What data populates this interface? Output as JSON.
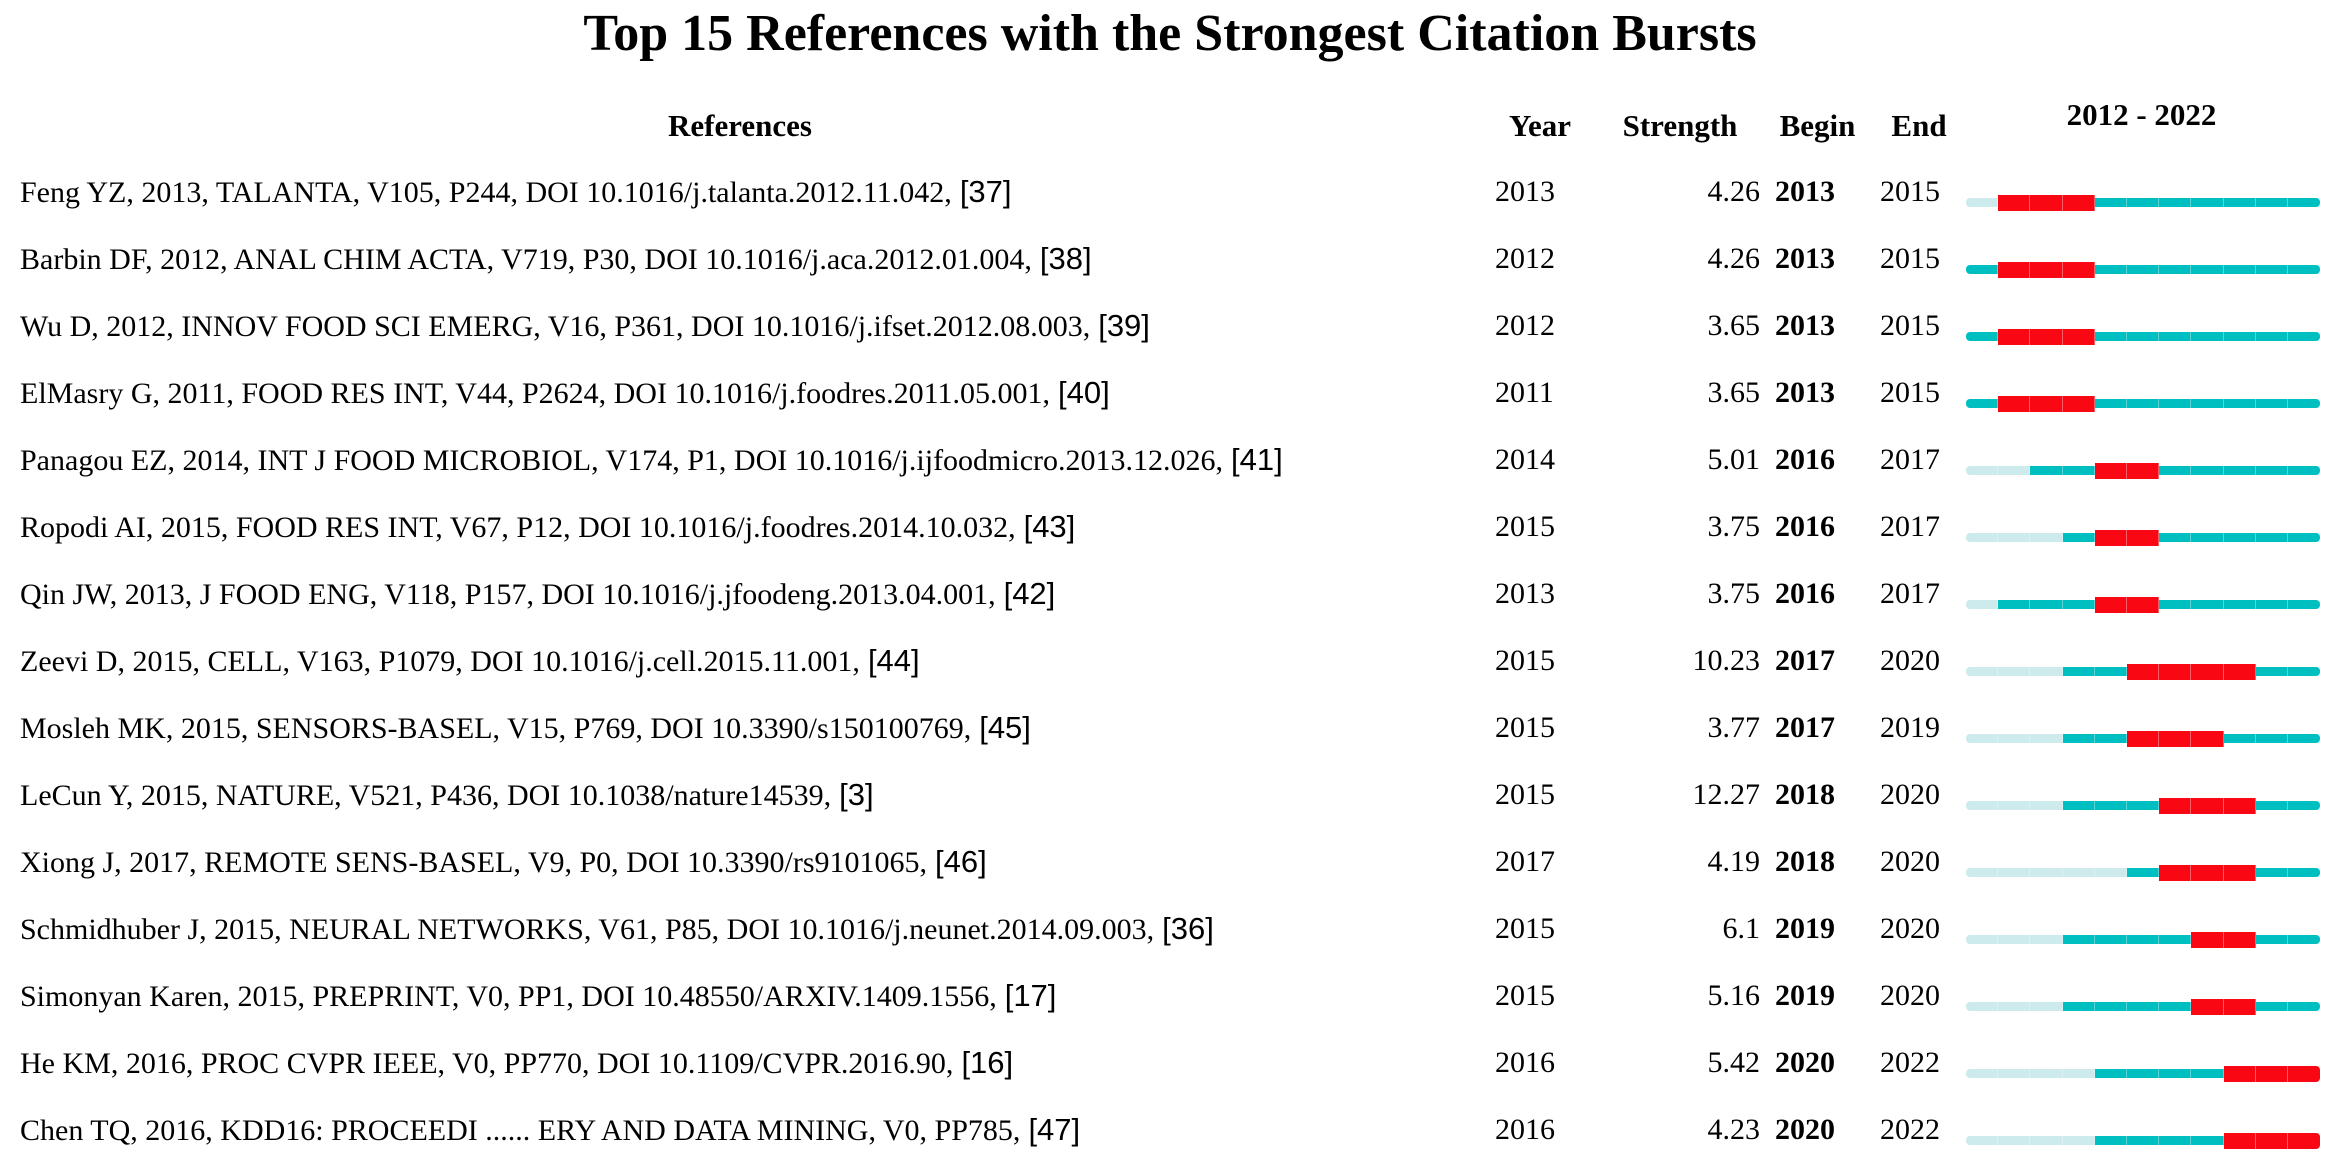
{
  "title": "Top 15 References with the Strongest Citation Bursts",
  "columns": {
    "references": "References",
    "year": "Year",
    "strength": "Strength",
    "begin": "Begin",
    "end": "End",
    "range": "2012 - 2022"
  },
  "colors": {
    "burst": "#f90813",
    "active": "#00bfc1",
    "inactive": "#cdeaec",
    "text": "#000000"
  },
  "chart_data": {
    "type": "table",
    "title": "Top 15 References with the Strongest Citation Bursts",
    "columns": [
      "References",
      "Year",
      "Strength",
      "Begin",
      "End",
      "2012 - 2022"
    ],
    "timeline_range": [
      2012,
      2022
    ],
    "legend": {
      "burst_color_meaning": "citation burst period (Begin–End)",
      "active_color_meaning": "years from publication year onward",
      "inactive_color_meaning": "years before publication"
    },
    "rows": [
      {
        "ref": "Feng YZ, 2013, TALANTA, V105, P244, DOI 10.1016/j.talanta.2012.11.042,",
        "tag": "[37]",
        "year": 2013,
        "strength": "4.26",
        "begin": 2013,
        "end": 2015
      },
      {
        "ref": "Barbin DF, 2012, ANAL CHIM ACTA, V719, P30, DOI 10.1016/j.aca.2012.01.004,",
        "tag": "[38]",
        "year": 2012,
        "strength": "4.26",
        "begin": 2013,
        "end": 2015
      },
      {
        "ref": "Wu D, 2012, INNOV FOOD SCI EMERG, V16, P361, DOI 10.1016/j.ifset.2012.08.003,",
        "tag": "[39]",
        "year": 2012,
        "strength": "3.65",
        "begin": 2013,
        "end": 2015
      },
      {
        "ref": "ElMasry G, 2011, FOOD RES INT, V44, P2624, DOI 10.1016/j.foodres.2011.05.001,",
        "tag": "[40]",
        "year": 2011,
        "strength": "3.65",
        "begin": 2013,
        "end": 2015
      },
      {
        "ref": "Panagou EZ, 2014, INT J FOOD MICROBIOL, V174, P1, DOI 10.1016/j.ijfoodmicro.2013.12.026,",
        "tag": "[41]",
        "year": 2014,
        "strength": "5.01",
        "begin": 2016,
        "end": 2017
      },
      {
        "ref": "Ropodi AI, 2015, FOOD RES INT, V67, P12, DOI 10.1016/j.foodres.2014.10.032,",
        "tag": "[43]",
        "year": 2015,
        "strength": "3.75",
        "begin": 2016,
        "end": 2017
      },
      {
        "ref": "Qin JW, 2013, J FOOD ENG, V118, P157, DOI 10.1016/j.jfoodeng.2013.04.001,",
        "tag": "[42]",
        "year": 2013,
        "strength": "3.75",
        "begin": 2016,
        "end": 2017
      },
      {
        "ref": "Zeevi D, 2015, CELL, V163, P1079, DOI 10.1016/j.cell.2015.11.001,",
        "tag": "[44]",
        "year": 2015,
        "strength": "10.23",
        "begin": 2017,
        "end": 2020
      },
      {
        "ref": "Mosleh MK, 2015, SENSORS-BASEL, V15, P769, DOI 10.3390/s150100769,",
        "tag": "[45]",
        "year": 2015,
        "strength": "3.77",
        "begin": 2017,
        "end": 2019
      },
      {
        "ref": "LeCun Y, 2015, NATURE, V521, P436, DOI 10.1038/nature14539,",
        "tag": "[3]",
        "year": 2015,
        "strength": "12.27",
        "begin": 2018,
        "end": 2020
      },
      {
        "ref": "Xiong J, 2017, REMOTE SENS-BASEL, V9, P0, DOI 10.3390/rs9101065,",
        "tag": "[46]",
        "year": 2017,
        "strength": "4.19",
        "begin": 2018,
        "end": 2020
      },
      {
        "ref": "Schmidhuber J, 2015, NEURAL NETWORKS, V61, P85, DOI 10.1016/j.neunet.2014.09.003,",
        "tag": "[36]",
        "year": 2015,
        "strength": "6.1",
        "begin": 2019,
        "end": 2020
      },
      {
        "ref": "Simonyan Karen, 2015, PREPRINT, V0, PP1, DOI 10.48550/ARXIV.1409.1556,",
        "tag": "[17]",
        "year": 2015,
        "strength": "5.16",
        "begin": 2019,
        "end": 2020
      },
      {
        "ref": "He KM, 2016, PROC CVPR IEEE, V0, PP770, DOI 10.1109/CVPR.2016.90,",
        "tag": "[16]",
        "year": 2016,
        "strength": "5.42",
        "begin": 2020,
        "end": 2022
      },
      {
        "ref": "Chen TQ, 2016, KDD16: PROCEEDI ...... ERY AND DATA MINING, V0, PP785,",
        "tag": "[47]",
        "year": 2016,
        "strength": "4.23",
        "begin": 2020,
        "end": 2022
      }
    ]
  }
}
